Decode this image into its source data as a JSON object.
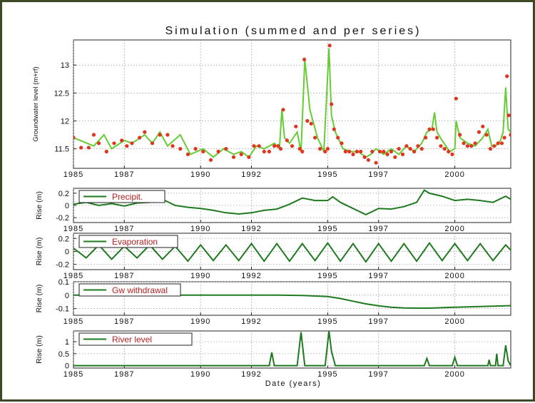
{
  "title": "Simulation (summed and per series)",
  "xlabel": "Date (years)",
  "colors": {
    "obs": "#e0361f",
    "sim": "#66cc33",
    "series": "#1f7a1f",
    "legend_text": "#b22222",
    "frame": "#3b4a24"
  },
  "x_tick_labels": [
    "1985",
    "1987",
    "1990",
    "1992",
    "1995",
    "1997",
    "2000"
  ],
  "chart_data": [
    {
      "type": "line",
      "ylabel": "Groundwater level (m+rf)",
      "ylim": [
        11.15,
        13.45
      ],
      "xlim": [
        1985.0,
        2002.2
      ],
      "ytick_labels": [
        "11.5",
        "12",
        "12.5",
        "13"
      ],
      "grid": true,
      "series": [
        {
          "kind": "simulated",
          "x": [
            1985.0,
            1985.8,
            1986.2,
            1986.5,
            1987.0,
            1987.3,
            1987.8,
            1988.1,
            1988.4,
            1988.7,
            1989.2,
            1989.6,
            1990.1,
            1990.5,
            1990.9,
            1991.3,
            1991.6,
            1991.9,
            1992.2,
            1992.5,
            1992.9,
            1993.1,
            1993.2,
            1993.3,
            1993.5,
            1993.8,
            1993.95,
            1994.1,
            1994.3,
            1994.6,
            1994.85,
            1995.05,
            1995.15,
            1995.3,
            1995.6,
            1995.9,
            1996.2,
            1996.5,
            1996.7,
            1996.9,
            1997.2,
            1997.5,
            1997.8,
            1998.1,
            1998.4,
            1998.7,
            1998.9,
            1999.1,
            1999.2,
            1999.3,
            1999.5,
            1999.8,
            2000.0,
            2000.05,
            2000.2,
            2000.5,
            2000.8,
            2001.1,
            2001.3,
            2001.45,
            2001.6,
            2001.8,
            2001.9,
            2002.0,
            2002.05,
            2002.1,
            2002.2
          ],
          "y": [
            11.7,
            11.55,
            11.75,
            11.5,
            11.65,
            11.6,
            11.75,
            11.6,
            11.8,
            11.55,
            11.75,
            11.4,
            11.5,
            11.35,
            11.5,
            11.4,
            11.45,
            11.35,
            11.55,
            11.5,
            11.6,
            11.5,
            12.2,
            11.7,
            11.6,
            11.8,
            11.45,
            13.1,
            12.2,
            11.7,
            11.45,
            13.3,
            12.1,
            11.8,
            11.5,
            11.45,
            11.45,
            11.35,
            11.4,
            11.5,
            11.4,
            11.5,
            11.4,
            11.55,
            11.45,
            11.6,
            11.8,
            11.85,
            12.15,
            11.8,
            11.65,
            11.45,
            11.5,
            12.0,
            11.7,
            11.6,
            11.55,
            11.7,
            11.85,
            11.55,
            11.55,
            11.65,
            11.8,
            12.6,
            12.2,
            11.85,
            11.8
          ]
        },
        {
          "kind": "observed",
          "x": [
            1985.0,
            1985.3,
            1985.6,
            1985.8,
            1986.0,
            1986.3,
            1986.6,
            1986.9,
            1987.1,
            1987.3,
            1987.6,
            1987.8,
            1988.1,
            1988.4,
            1988.7,
            1988.9,
            1989.2,
            1989.5,
            1989.8,
            1990.1,
            1990.4,
            1990.7,
            1991.0,
            1991.3,
            1991.6,
            1991.9,
            1992.1,
            1992.3,
            1992.5,
            1992.7,
            1992.9,
            1993.05,
            1993.15,
            1993.25,
            1993.4,
            1993.6,
            1993.75,
            1993.9,
            1994.0,
            1994.08,
            1994.2,
            1994.35,
            1994.5,
            1994.7,
            1994.9,
            1995.0,
            1995.08,
            1995.15,
            1995.25,
            1995.4,
            1995.55,
            1995.7,
            1995.85,
            1996.0,
            1996.15,
            1996.3,
            1996.45,
            1996.6,
            1996.75,
            1996.9,
            1997.05,
            1997.2,
            1997.35,
            1997.5,
            1997.65,
            1997.8,
            1997.95,
            1998.1,
            1998.25,
            1998.4,
            1998.55,
            1998.7,
            1998.85,
            1999.0,
            1999.15,
            1999.3,
            1999.45,
            1999.6,
            1999.75,
            1999.9,
            2000.05,
            2000.2,
            2000.35,
            2000.5,
            2000.65,
            2000.8,
            2000.95,
            2001.1,
            2001.25,
            2001.4,
            2001.55,
            2001.7,
            2001.85,
            2001.95,
            2002.05,
            2002.12,
            2002.2
          ],
          "y": [
            11.7,
            11.52,
            11.52,
            11.75,
            11.6,
            11.45,
            11.6,
            11.65,
            11.55,
            11.6,
            11.7,
            11.8,
            11.6,
            11.75,
            11.75,
            11.55,
            11.5,
            11.4,
            11.5,
            11.45,
            11.3,
            11.45,
            11.5,
            11.35,
            11.4,
            11.35,
            11.55,
            11.55,
            11.45,
            11.45,
            11.55,
            11.55,
            11.5,
            12.2,
            11.65,
            11.55,
            11.9,
            11.5,
            11.45,
            13.1,
            12.0,
            11.95,
            11.7,
            11.5,
            11.45,
            11.5,
            13.35,
            12.3,
            11.85,
            11.7,
            11.6,
            11.45,
            11.45,
            11.4,
            11.45,
            11.45,
            11.35,
            11.3,
            11.45,
            11.25,
            11.45,
            11.45,
            11.4,
            11.45,
            11.35,
            11.5,
            11.4,
            11.55,
            11.5,
            11.45,
            11.55,
            11.5,
            11.7,
            11.85,
            11.85,
            11.7,
            11.55,
            11.5,
            11.45,
            11.4,
            12.4,
            11.75,
            11.6,
            11.55,
            11.55,
            11.6,
            11.8,
            11.9,
            11.75,
            11.5,
            11.55,
            11.6,
            11.6,
            11.7,
            12.8,
            12.1,
            11.75
          ]
        }
      ]
    },
    {
      "type": "line",
      "ylabel": "Rise (m)",
      "legend": "Precipit.",
      "ylim": [
        -0.28,
        0.28
      ],
      "ytick_labels": [
        "0.2",
        "0",
        "-0.2"
      ],
      "series": [
        {
          "name": "Precipit.",
          "x": [
            1985.0,
            1985.5,
            1986.0,
            1986.5,
            1987.0,
            1987.5,
            1988.0,
            1988.5,
            1989.0,
            1989.5,
            1990.0,
            1990.5,
            1991.0,
            1991.5,
            1992.0,
            1992.5,
            1993.0,
            1993.5,
            1994.0,
            1994.5,
            1995.0,
            1995.2,
            1995.5,
            1996.0,
            1996.5,
            1997.0,
            1997.5,
            1998.0,
            1998.5,
            1998.8,
            1999.0,
            1999.5,
            2000.0,
            2000.5,
            2001.0,
            2001.5,
            2002.0,
            2002.2
          ],
          "y": [
            0.02,
            0.05,
            0.0,
            0.03,
            -0.01,
            0.04,
            0.05,
            0.1,
            0.0,
            -0.03,
            -0.05,
            -0.08,
            -0.12,
            -0.14,
            -0.12,
            -0.08,
            -0.06,
            0.02,
            0.12,
            0.08,
            0.08,
            0.14,
            0.05,
            -0.05,
            -0.15,
            -0.05,
            -0.06,
            -0.02,
            0.05,
            0.25,
            0.2,
            0.15,
            0.08,
            0.1,
            0.08,
            0.05,
            0.15,
            0.1
          ]
        }
      ]
    },
    {
      "type": "line",
      "ylabel": "Rise (m)",
      "legend": "Evaporation",
      "ylim": [
        -0.28,
        0.28
      ],
      "ytick_labels": [
        "0.2",
        "0",
        "-0.2"
      ],
      "series": [
        {
          "name": "Evaporation",
          "x": [
            1985.0,
            1985.5,
            1986.0,
            1986.5,
            1987.0,
            1987.5,
            1988.0,
            1988.5,
            1989.0,
            1989.5,
            1990.0,
            1990.5,
            1991.0,
            1991.5,
            1992.0,
            1992.5,
            1993.0,
            1993.5,
            1994.0,
            1994.5,
            1995.0,
            1995.5,
            1996.0,
            1996.5,
            1997.0,
            1997.5,
            1998.0,
            1998.5,
            1999.0,
            1999.5,
            2000.0,
            2000.5,
            2001.0,
            2001.5,
            2002.0,
            2002.2
          ],
          "y": [
            0.05,
            -0.1,
            0.1,
            -0.12,
            0.08,
            -0.1,
            0.1,
            -0.12,
            0.08,
            -0.15,
            0.1,
            -0.14,
            0.1,
            -0.14,
            0.12,
            -0.15,
            0.12,
            -0.15,
            0.12,
            -0.14,
            0.13,
            -0.15,
            0.12,
            -0.16,
            0.12,
            -0.15,
            0.12,
            -0.15,
            0.13,
            -0.14,
            0.12,
            -0.14,
            0.12,
            -0.14,
            0.1,
            0.02
          ]
        }
      ]
    },
    {
      "type": "line",
      "ylabel": "Rise (m)",
      "legend": "Gw withdrawal",
      "ylim": [
        -0.15,
        0.1
      ],
      "ytick_labels": [
        "0.1",
        "0",
        "-0.1"
      ],
      "series": [
        {
          "name": "Gw withdrawal",
          "x": [
            1985.0,
            1990.0,
            1993.0,
            1994.0,
            1995.0,
            1995.5,
            1996.0,
            1996.5,
            1997.0,
            1997.5,
            1998.0,
            1998.5,
            1999.0,
            2000.0,
            2001.0,
            2002.0,
            2002.2
          ],
          "y": [
            0.0,
            0.0,
            0.0,
            -0.002,
            -0.01,
            -0.025,
            -0.045,
            -0.065,
            -0.08,
            -0.09,
            -0.095,
            -0.097,
            -0.097,
            -0.09,
            -0.085,
            -0.08,
            -0.078
          ]
        }
      ]
    },
    {
      "type": "line",
      "ylabel": "Rise (m)",
      "legend": "River level",
      "ylim": [
        -0.1,
        1.45
      ],
      "ytick_labels": [
        "1",
        "0.5",
        "0"
      ],
      "series": [
        {
          "name": "River level",
          "x": [
            1985.0,
            1992.7,
            1992.8,
            1992.9,
            1993.8,
            1993.95,
            1994.1,
            1994.9,
            1995.05,
            1995.15,
            1995.3,
            1998.8,
            1998.9,
            1999.0,
            1999.9,
            2000.0,
            2000.1,
            2001.3,
            2001.35,
            2001.4,
            2001.6,
            2001.65,
            2001.7,
            2001.9,
            2002.0,
            2002.1,
            2002.2
          ],
          "y": [
            0.0,
            0.0,
            0.55,
            0.0,
            0.0,
            1.4,
            0.0,
            0.0,
            1.45,
            0.6,
            0.0,
            0.0,
            0.3,
            0.0,
            0.0,
            0.35,
            0.0,
            0.0,
            0.25,
            0.0,
            0.0,
            0.5,
            0.0,
            0.0,
            0.85,
            0.2,
            0.0
          ]
        }
      ]
    }
  ]
}
